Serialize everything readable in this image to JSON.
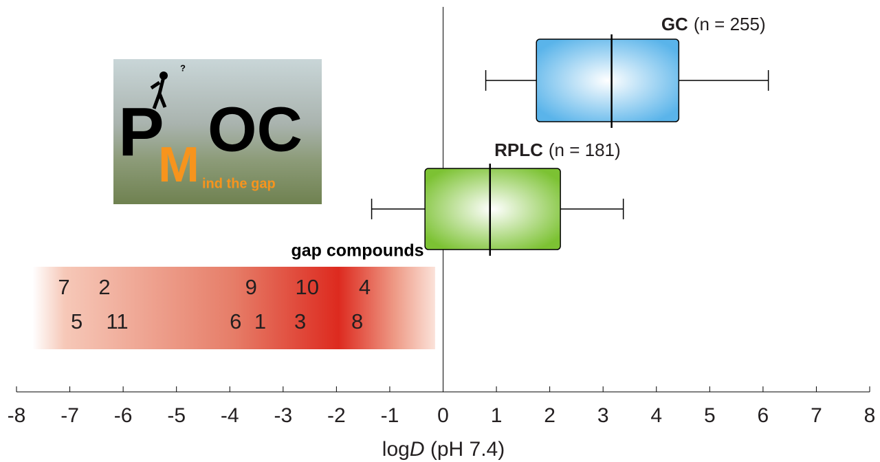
{
  "chart_data": {
    "type": "boxplot",
    "xlim": [
      -8,
      8
    ],
    "xticks": [
      -8,
      -7,
      -6,
      -5,
      -4,
      -3,
      -2,
      -1,
      0,
      1,
      2,
      3,
      4,
      5,
      6,
      7,
      8
    ],
    "x_label_parts": [
      "log",
      "D",
      " (pH 7.4)"
    ],
    "series": [
      {
        "name": "GC",
        "n_label": "(n = 255)",
        "color": "#5ab4ea",
        "whisker_low": 0.8,
        "q1": 1.75,
        "median": 3.16,
        "q3": 4.42,
        "whisker_high": 6.1
      },
      {
        "name": "RPLC",
        "n_label": "(n = 181)",
        "color": "#7cc233",
        "whisker_low": -1.34,
        "q1": -0.34,
        "median": 0.88,
        "q3": 2.2,
        "whisker_high": 3.38
      }
    ],
    "gap": {
      "title": "gap compounds",
      "range": [
        -7.7,
        -0.15
      ],
      "color": "#dd2a1f",
      "upper": [
        {
          "label": "7",
          "x": -7.11
        },
        {
          "label": "2",
          "x": -6.35
        },
        {
          "label": "9",
          "x": -3.6
        },
        {
          "label": "10",
          "x": -2.55
        },
        {
          "label": "4",
          "x": -1.47
        }
      ],
      "lower": [
        {
          "label": "5",
          "x": -6.87
        },
        {
          "label": "11",
          "x": -6.11
        },
        {
          "label": "6",
          "x": -3.89
        },
        {
          "label": "1",
          "x": -3.43
        },
        {
          "label": "3",
          "x": -2.68
        },
        {
          "label": "8",
          "x": -1.61
        }
      ]
    }
  },
  "logo": {
    "question": "?",
    "p": "P",
    "oc": "OC",
    "m": "M",
    "tagline": "ind the gap"
  }
}
